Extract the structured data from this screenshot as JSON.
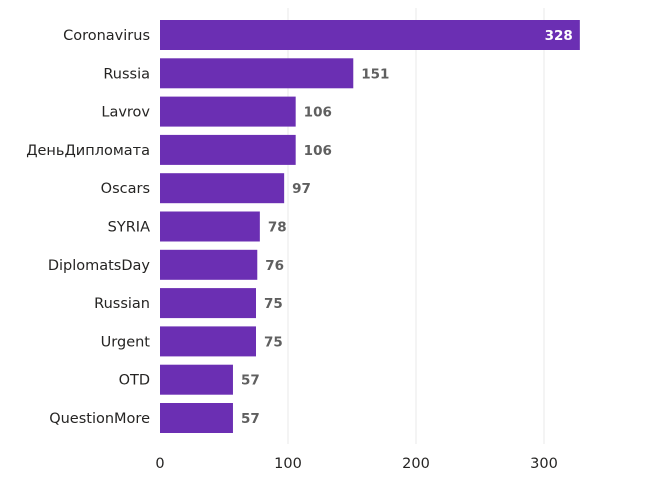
{
  "chart_data": {
    "type": "bar",
    "orientation": "horizontal",
    "categories": [
      "Coronavirus",
      "Russia",
      "Lavrov",
      "ДеньДипломата",
      "Oscars",
      "SYRIA",
      "DiplomatsDay",
      "Russian",
      "Urgent",
      "OTD",
      "QuestionMore"
    ],
    "values": [
      328,
      151,
      106,
      106,
      97,
      78,
      76,
      75,
      75,
      57,
      57
    ],
    "data_labels": [
      "328",
      "151",
      "106",
      "106",
      "97",
      "78",
      "76",
      "75",
      "75",
      "57",
      "57"
    ],
    "x_ticks": [
      0,
      100,
      200,
      300
    ],
    "x_tick_labels": [
      "0",
      "100",
      "200",
      "300"
    ],
    "xlim": [
      0,
      350
    ],
    "title": "",
    "xlabel": "",
    "ylabel": "",
    "grid": true,
    "bar_color": "#6b2fb3"
  }
}
